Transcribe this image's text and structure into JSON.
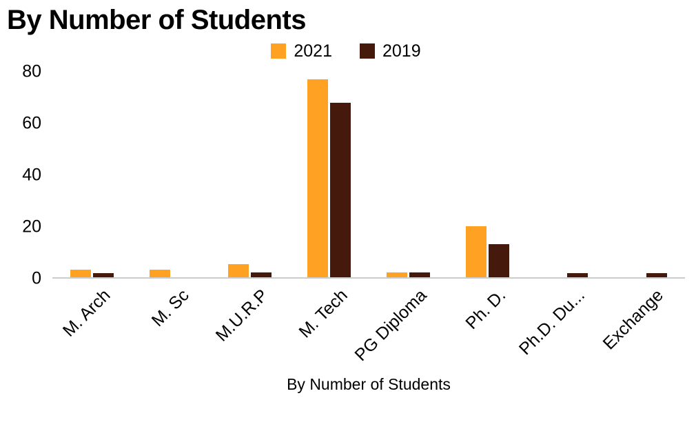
{
  "chart_data": {
    "type": "bar",
    "title": "By Number of Students",
    "xlabel": "By Number of Students",
    "ylabel": "",
    "categories": [
      "M. Arch",
      "M. Sc",
      "M.U.R.P",
      "M. Tech",
      "PG Diploma",
      "Ph. D.",
      "Ph.D. Du...",
      "Exchange"
    ],
    "series": [
      {
        "name": "2021",
        "color": "#FFA224",
        "values": [
          3,
          3,
          5,
          77,
          2,
          20,
          0,
          0
        ]
      },
      {
        "name": "2019",
        "color": "#45190B",
        "values": [
          1.5,
          0,
          2,
          68,
          2,
          13,
          1.5,
          1.5
        ]
      }
    ],
    "ylim": [
      0,
      80
    ],
    "yticks": [
      0,
      20,
      40,
      60,
      80
    ],
    "grid": false,
    "legend_position": "top"
  },
  "colors": {
    "series_2021": "#FFA224",
    "series_2019": "#45190B",
    "axis_line": "#cccccc",
    "text": "#000000"
  }
}
